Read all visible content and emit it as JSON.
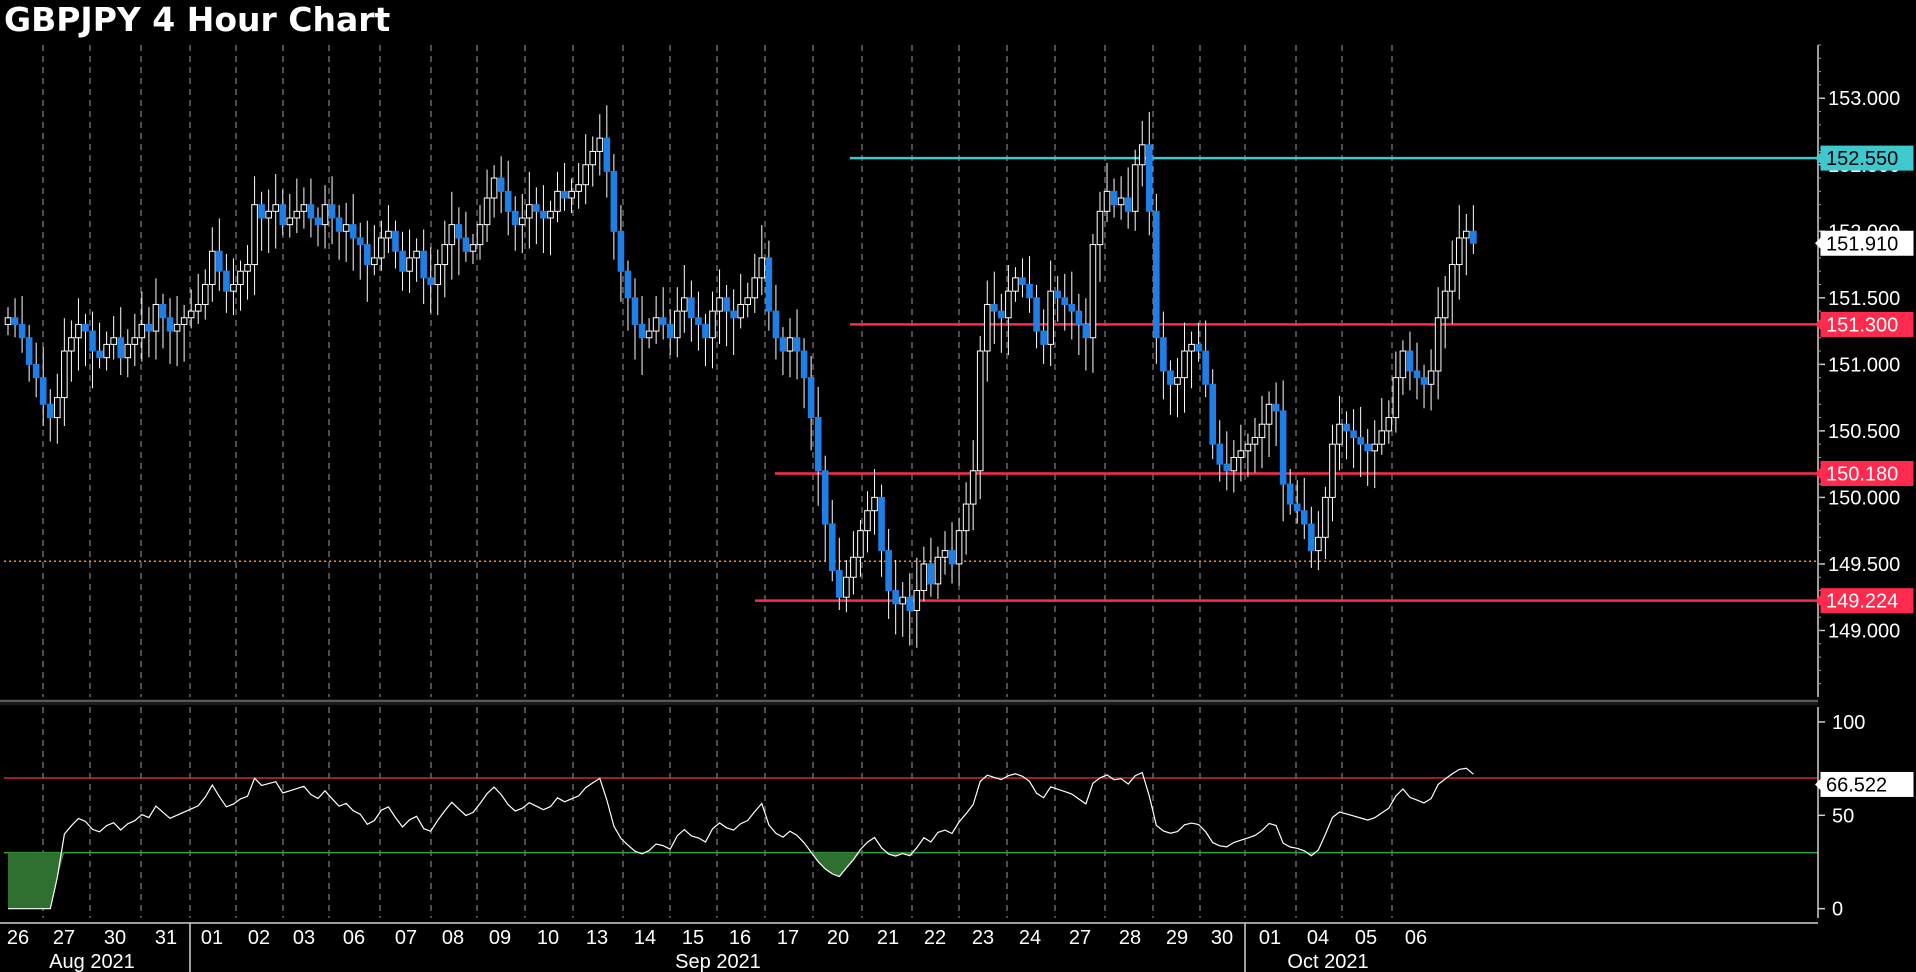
{
  "title": "GBPJPY 4 Hour Chart",
  "colors": {
    "background": "#000000",
    "bull_candle": "#ffffff",
    "bear_candle": "#1f7fe6",
    "resistance_cyan": "#3ec9cf",
    "level_red": "#ff2a4e",
    "current_dotted": "#ff8c1a",
    "rsi_line": "#ffffff",
    "rsi_upper": "#d0253b",
    "rsi_lower": "#2fa33a",
    "rsi_fill": "#2f6f2f",
    "grid": "#9a9a9a"
  },
  "chart_data": [
    {
      "type": "candlestick",
      "title": "GBPJPY 4 Hour Chart",
      "ylim": [
        148.5,
        153.4
      ],
      "yticks": [
        "149.000",
        "149.500",
        "150.000",
        "150.500",
        "151.000",
        "151.500",
        "152.000",
        "152.500",
        "153.000"
      ],
      "x_labels": [
        "26",
        "27",
        "30",
        "31",
        "01",
        "02",
        "03",
        "06",
        "07",
        "08",
        "09",
        "10",
        "13",
        "14",
        "15",
        "16",
        "17",
        "20",
        "21",
        "22",
        "23",
        "24",
        "27",
        "28",
        "29",
        "30",
        "01",
        "04",
        "05",
        "06"
      ],
      "month_labels": [
        "Aug 2021",
        "Sep 2021",
        "Oct 2021"
      ],
      "horizontal_levels": [
        {
          "value": 152.55,
          "label": "152.550",
          "color": "#3ec9cf"
        },
        {
          "value": 151.3,
          "label": "151.300",
          "color": "#ff2a4e"
        },
        {
          "value": 150.18,
          "label": "150.180",
          "color": "#ff2a4e"
        },
        {
          "value": 149.224,
          "label": "149.224",
          "color": "#ff2a4e"
        }
      ],
      "last_price": {
        "value": 151.91,
        "label": "151.910"
      },
      "dotted_level": 149.52,
      "closes": [
        151.35,
        151.3,
        151.2,
        151.0,
        150.9,
        150.7,
        150.6,
        150.75,
        151.1,
        151.2,
        151.3,
        151.25,
        151.1,
        151.05,
        151.15,
        151.2,
        151.05,
        151.15,
        151.2,
        151.3,
        151.25,
        151.45,
        151.35,
        151.25,
        151.3,
        151.35,
        151.4,
        151.45,
        151.6,
        151.85,
        151.7,
        151.55,
        151.6,
        151.7,
        151.75,
        152.2,
        152.1,
        152.15,
        152.2,
        152.05,
        152.1,
        152.15,
        152.2,
        152.1,
        152.05,
        152.2,
        152.1,
        152.0,
        152.05,
        151.95,
        151.9,
        151.75,
        151.8,
        151.95,
        152.0,
        151.85,
        151.7,
        151.8,
        151.85,
        151.65,
        151.6,
        151.75,
        151.9,
        152.05,
        151.95,
        151.85,
        151.9,
        152.05,
        152.25,
        152.4,
        152.3,
        152.15,
        152.05,
        152.1,
        152.2,
        152.15,
        152.1,
        152.15,
        152.3,
        152.25,
        152.3,
        152.35,
        152.5,
        152.6,
        152.7,
        152.45,
        152.0,
        151.7,
        151.5,
        151.3,
        151.2,
        151.25,
        151.35,
        151.3,
        151.2,
        151.4,
        151.5,
        151.35,
        151.3,
        151.2,
        151.4,
        151.5,
        151.4,
        151.35,
        151.45,
        151.5,
        151.65,
        151.8,
        151.4,
        151.2,
        151.1,
        151.2,
        151.1,
        150.9,
        150.6,
        150.2,
        149.8,
        149.45,
        149.25,
        149.4,
        149.55,
        149.75,
        149.9,
        150.0,
        149.6,
        149.3,
        149.2,
        149.25,
        149.15,
        149.3,
        149.5,
        149.35,
        149.55,
        149.6,
        149.5,
        149.75,
        149.95,
        150.2,
        151.1,
        151.45,
        151.4,
        151.35,
        151.55,
        151.65,
        151.6,
        151.5,
        151.25,
        151.15,
        151.55,
        151.5,
        151.45,
        151.4,
        151.3,
        151.2,
        151.9,
        152.15,
        152.3,
        152.2,
        152.25,
        152.15,
        152.5,
        152.65,
        152.15,
        151.2,
        150.95,
        150.85,
        150.9,
        151.1,
        151.15,
        151.1,
        150.85,
        150.4,
        150.25,
        150.2,
        150.3,
        150.35,
        150.4,
        150.45,
        150.55,
        150.7,
        150.65,
        150.1,
        149.95,
        149.9,
        149.8,
        149.6,
        149.7,
        150.0,
        150.4,
        150.55,
        150.5,
        150.45,
        150.4,
        150.35,
        150.4,
        150.5,
        150.6,
        150.9,
        151.1,
        150.95,
        150.9,
        150.85,
        150.95,
        151.35,
        151.55,
        151.75,
        151.95,
        152.0,
        151.91
      ],
      "rsi": {
        "ylim": [
          -5,
          108
        ],
        "yticks": [
          "0",
          "50",
          "100"
        ],
        "upper": 70,
        "lower": 30,
        "last": {
          "value": 66.522,
          "label": "66.522"
        }
      }
    }
  ]
}
